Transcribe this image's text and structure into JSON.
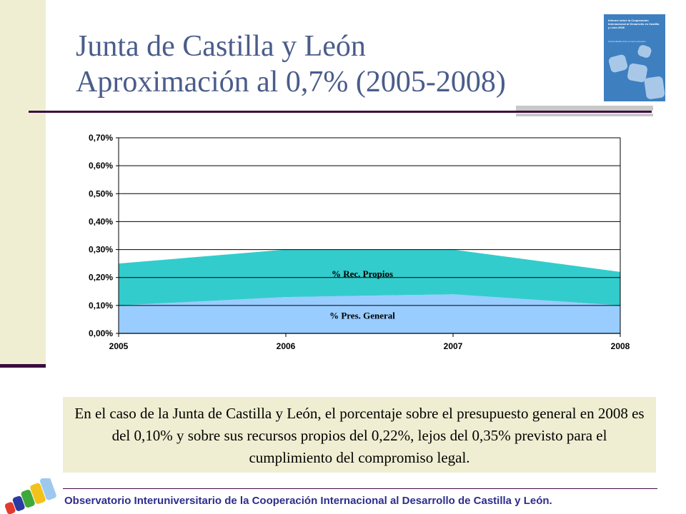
{
  "slide": {
    "title_line1": "Junta de Castilla y León",
    "title_line2": "Aproximación al 0,7% (2005-2008)",
    "caption": "En el caso de la Junta de Castilla y León, el porcentaje sobre el presupuesto general en 2008 es del 0,10% y sobre sus recursos propios del 0,22%, lejos del 0,35% previsto para el cumplimiento del compromiso legal.",
    "footer": "Observatorio Interuniversitario de la Cooperación Internacional al Desarrollo de Castilla y León."
  },
  "cover": {
    "title": "Informe sobre la Cooperación Internacional al Desarrollo en Castilla y León 2008",
    "subtitle": "Oportunidades ante el nuevo escenario"
  },
  "colors": {
    "title": "#4a5d8a",
    "accent_dark": "#3b0a3f",
    "panel": "#efeed2",
    "rec_propios": "#33cccc",
    "pres_general": "#99ccff",
    "footer_text": "#2e2d8c"
  },
  "chart_data": {
    "type": "area",
    "stacked": true,
    "categories": [
      "2005",
      "2006",
      "2007",
      "2008"
    ],
    "series": [
      {
        "name": "% Pres. General",
        "values": [
          0.1,
          0.13,
          0.14,
          0.1
        ],
        "color": "#99ccff"
      },
      {
        "name": "% Rec. Propios",
        "values": [
          0.25,
          0.3,
          0.3,
          0.22
        ],
        "color": "#33cccc"
      }
    ],
    "ylim": [
      0,
      0.7
    ],
    "yticks": [
      0.0,
      0.1,
      0.2,
      0.3,
      0.4,
      0.5,
      0.6,
      0.7
    ],
    "ytick_labels": [
      "0,00%",
      "0,10%",
      "0,20%",
      "0,30%",
      "0,40%",
      "0,50%",
      "0,60%",
      "0,70%"
    ],
    "grid": true,
    "series_labels_inside": true
  }
}
